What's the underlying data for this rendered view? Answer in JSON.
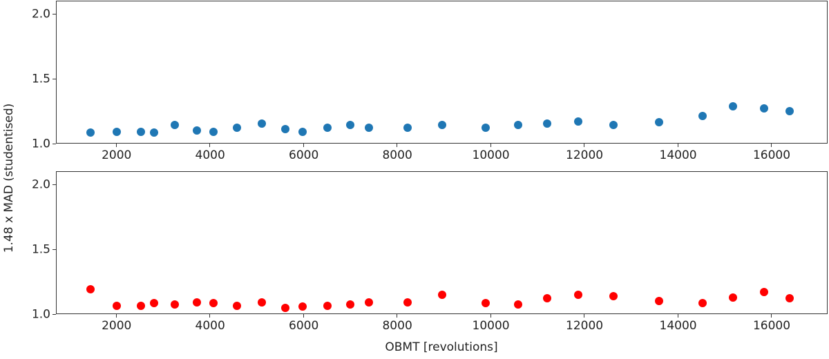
{
  "chart_data": {
    "type": "scatter",
    "ylabel": "1.48 x MAD (studentised)",
    "xlabel": "OBMT [revolutions]",
    "xlim": [
      720,
      17210
    ],
    "xticks": [
      2000,
      4000,
      6000,
      8000,
      10000,
      12000,
      14000,
      16000
    ],
    "panels": [
      {
        "name": "top",
        "color": "#1f77b4",
        "ylim": [
          1.0,
          2.1
        ],
        "yticks": [
          "1.0",
          "1.5",
          "2.0"
        ],
        "x": [
          1450,
          2000,
          2520,
          2800,
          3250,
          3720,
          4070,
          4580,
          5100,
          5600,
          5970,
          6500,
          7000,
          7400,
          8220,
          8960,
          9890,
          10580,
          11200,
          11860,
          12620,
          13590,
          14530,
          15180,
          15830,
          16390
        ],
        "y": [
          1.09,
          1.095,
          1.095,
          1.09,
          1.15,
          1.105,
          1.095,
          1.125,
          1.16,
          1.115,
          1.095,
          1.125,
          1.15,
          1.125,
          1.13,
          1.15,
          1.13,
          1.15,
          1.16,
          1.175,
          1.15,
          1.17,
          1.22,
          1.29,
          1.275,
          1.255
        ]
      },
      {
        "name": "bottom",
        "color": "#ff0000",
        "ylim": [
          1.0,
          2.1
        ],
        "yticks": [
          "1.0",
          "1.5",
          "2.0"
        ],
        "x": [
          1450,
          2000,
          2520,
          2800,
          3250,
          3720,
          4070,
          4580,
          5100,
          5600,
          5970,
          6500,
          7000,
          7400,
          8220,
          8960,
          9890,
          10580,
          11200,
          11860,
          12620,
          13590,
          14530,
          15180,
          15830,
          16390
        ],
        "y": [
          1.197,
          1.071,
          1.071,
          1.089,
          1.08,
          1.096,
          1.089,
          1.071,
          1.096,
          1.054,
          1.064,
          1.071,
          1.08,
          1.098,
          1.098,
          1.152,
          1.089,
          1.08,
          1.125,
          1.152,
          1.143,
          1.107,
          1.089,
          1.134,
          1.178,
          1.125
        ]
      }
    ]
  }
}
